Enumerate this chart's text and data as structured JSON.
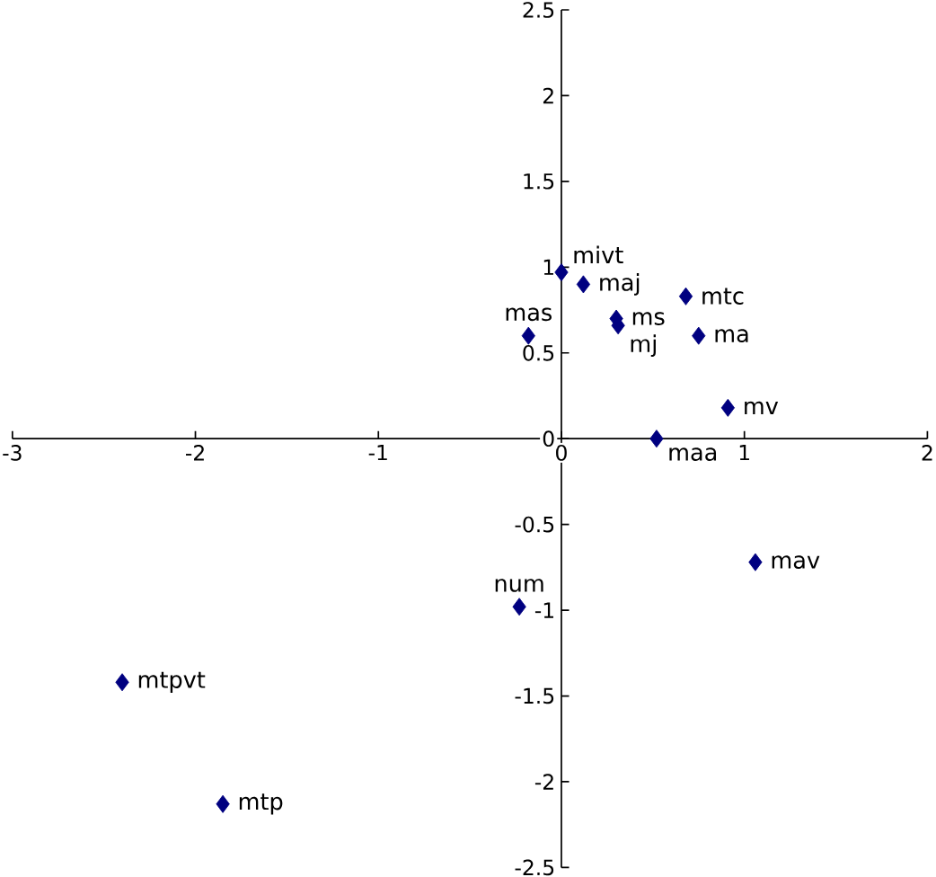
{
  "chart_data": {
    "type": "scatter",
    "marker": "diamond",
    "series": [
      {
        "color": "#000080",
        "x": [
          0.0,
          0.12,
          0.3,
          0.31,
          0.68,
          0.75,
          -0.18,
          0.91,
          0.52,
          1.06,
          -0.23,
          -2.4,
          -1.85
        ],
        "values": [
          0.97,
          0.9,
          0.7,
          0.66,
          0.83,
          0.6,
          0.6,
          0.18,
          0.0,
          -0.72,
          -0.98,
          -1.42,
          -2.13
        ]
      }
    ],
    "annotations": [
      {
        "text": "mivt",
        "x": 0.0,
        "y": 0.97
      },
      {
        "text": "maj",
        "x": 0.12,
        "y": 0.9
      },
      {
        "text": "ms",
        "x": 0.3,
        "y": 0.7
      },
      {
        "text": "mj",
        "x": 0.31,
        "y": 0.66
      },
      {
        "text": "mtc",
        "x": 0.68,
        "y": 0.83
      },
      {
        "text": "ma",
        "x": 0.75,
        "y": 0.6
      },
      {
        "text": "mas",
        "x": -0.18,
        "y": 0.6
      },
      {
        "text": "mv",
        "x": 0.91,
        "y": 0.18
      },
      {
        "text": "maa",
        "x": 0.52,
        "y": 0.0
      },
      {
        "text": "mav",
        "x": 1.06,
        "y": -0.72
      },
      {
        "text": "num",
        "x": -0.23,
        "y": -0.98
      },
      {
        "text": "mtpvt",
        "x": -2.4,
        "y": -1.42
      },
      {
        "text": "mtp",
        "x": -1.85,
        "y": -2.13
      }
    ],
    "xlim": [
      -3,
      2
    ],
    "xticks": [
      -3,
      -2,
      -1,
      0,
      1,
      2
    ],
    "ylim": [
      -2.5,
      2.5
    ],
    "yticks": [
      -2.5,
      -2,
      -1.5,
      -1,
      -0.5,
      0,
      0.5,
      1,
      1.5,
      2,
      2.5
    ],
    "grid": false
  }
}
